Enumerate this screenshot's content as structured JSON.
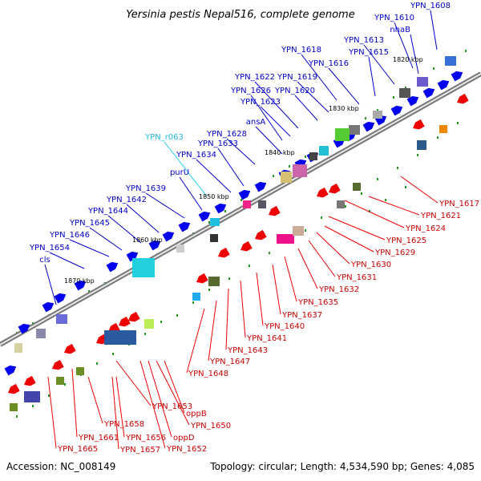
{
  "title": "Yersinia pestis Nepal516, complete genome",
  "footer": {
    "accession": "Accession: NC_008149",
    "topology": "Topology: circular; Length: 4,534,590 bp; Genes: 4,085"
  },
  "kbp_ticks": [
    "1820 kbp",
    "1830 kbp",
    "1840 kbp",
    "1850 kbp",
    "1860 kbp",
    "1870 kbp"
  ],
  "labels_top": [
    "YPN_1608",
    "YPN_1610",
    "nhaB",
    "YPN_1613",
    "YPN_1615",
    "YPN_1618",
    "YPN_1616",
    "YPN_1622",
    "YPN_1619",
    "YPN_1626",
    "YPN_1620",
    "YPN_1623",
    "ansA",
    "YPN_1628",
    "YPN_r063",
    "YPN_1633",
    "YPN_1634",
    "purU",
    "YPN_1639",
    "YPN_1642",
    "YPN_1644",
    "YPN_1645",
    "YPN_1646",
    "YPN_1654",
    "cls"
  ],
  "labels_bottom": [
    "YPN_1617",
    "YPN_1621",
    "YPN_1624",
    "YPN_1625",
    "YPN_1629",
    "YPN_1630",
    "YPN_1631",
    "YPN_1632",
    "YPN_1635",
    "YPN_1637",
    "YPN_1640",
    "YPN_1641",
    "YPN_1643",
    "YPN_1647",
    "YPN_1648",
    "oppB",
    "YPN_1653",
    "YPN_1650",
    "YPN_1658",
    "oppD",
    "YPN_1656",
    "YPN_1661",
    "YPN_1657",
    "YPN_1652",
    "YPN_1665"
  ],
  "colors": {
    "forward": "#0000ee",
    "reverse": "#ee0000",
    "backbone": "#888888",
    "noncoding": "#229922"
  }
}
